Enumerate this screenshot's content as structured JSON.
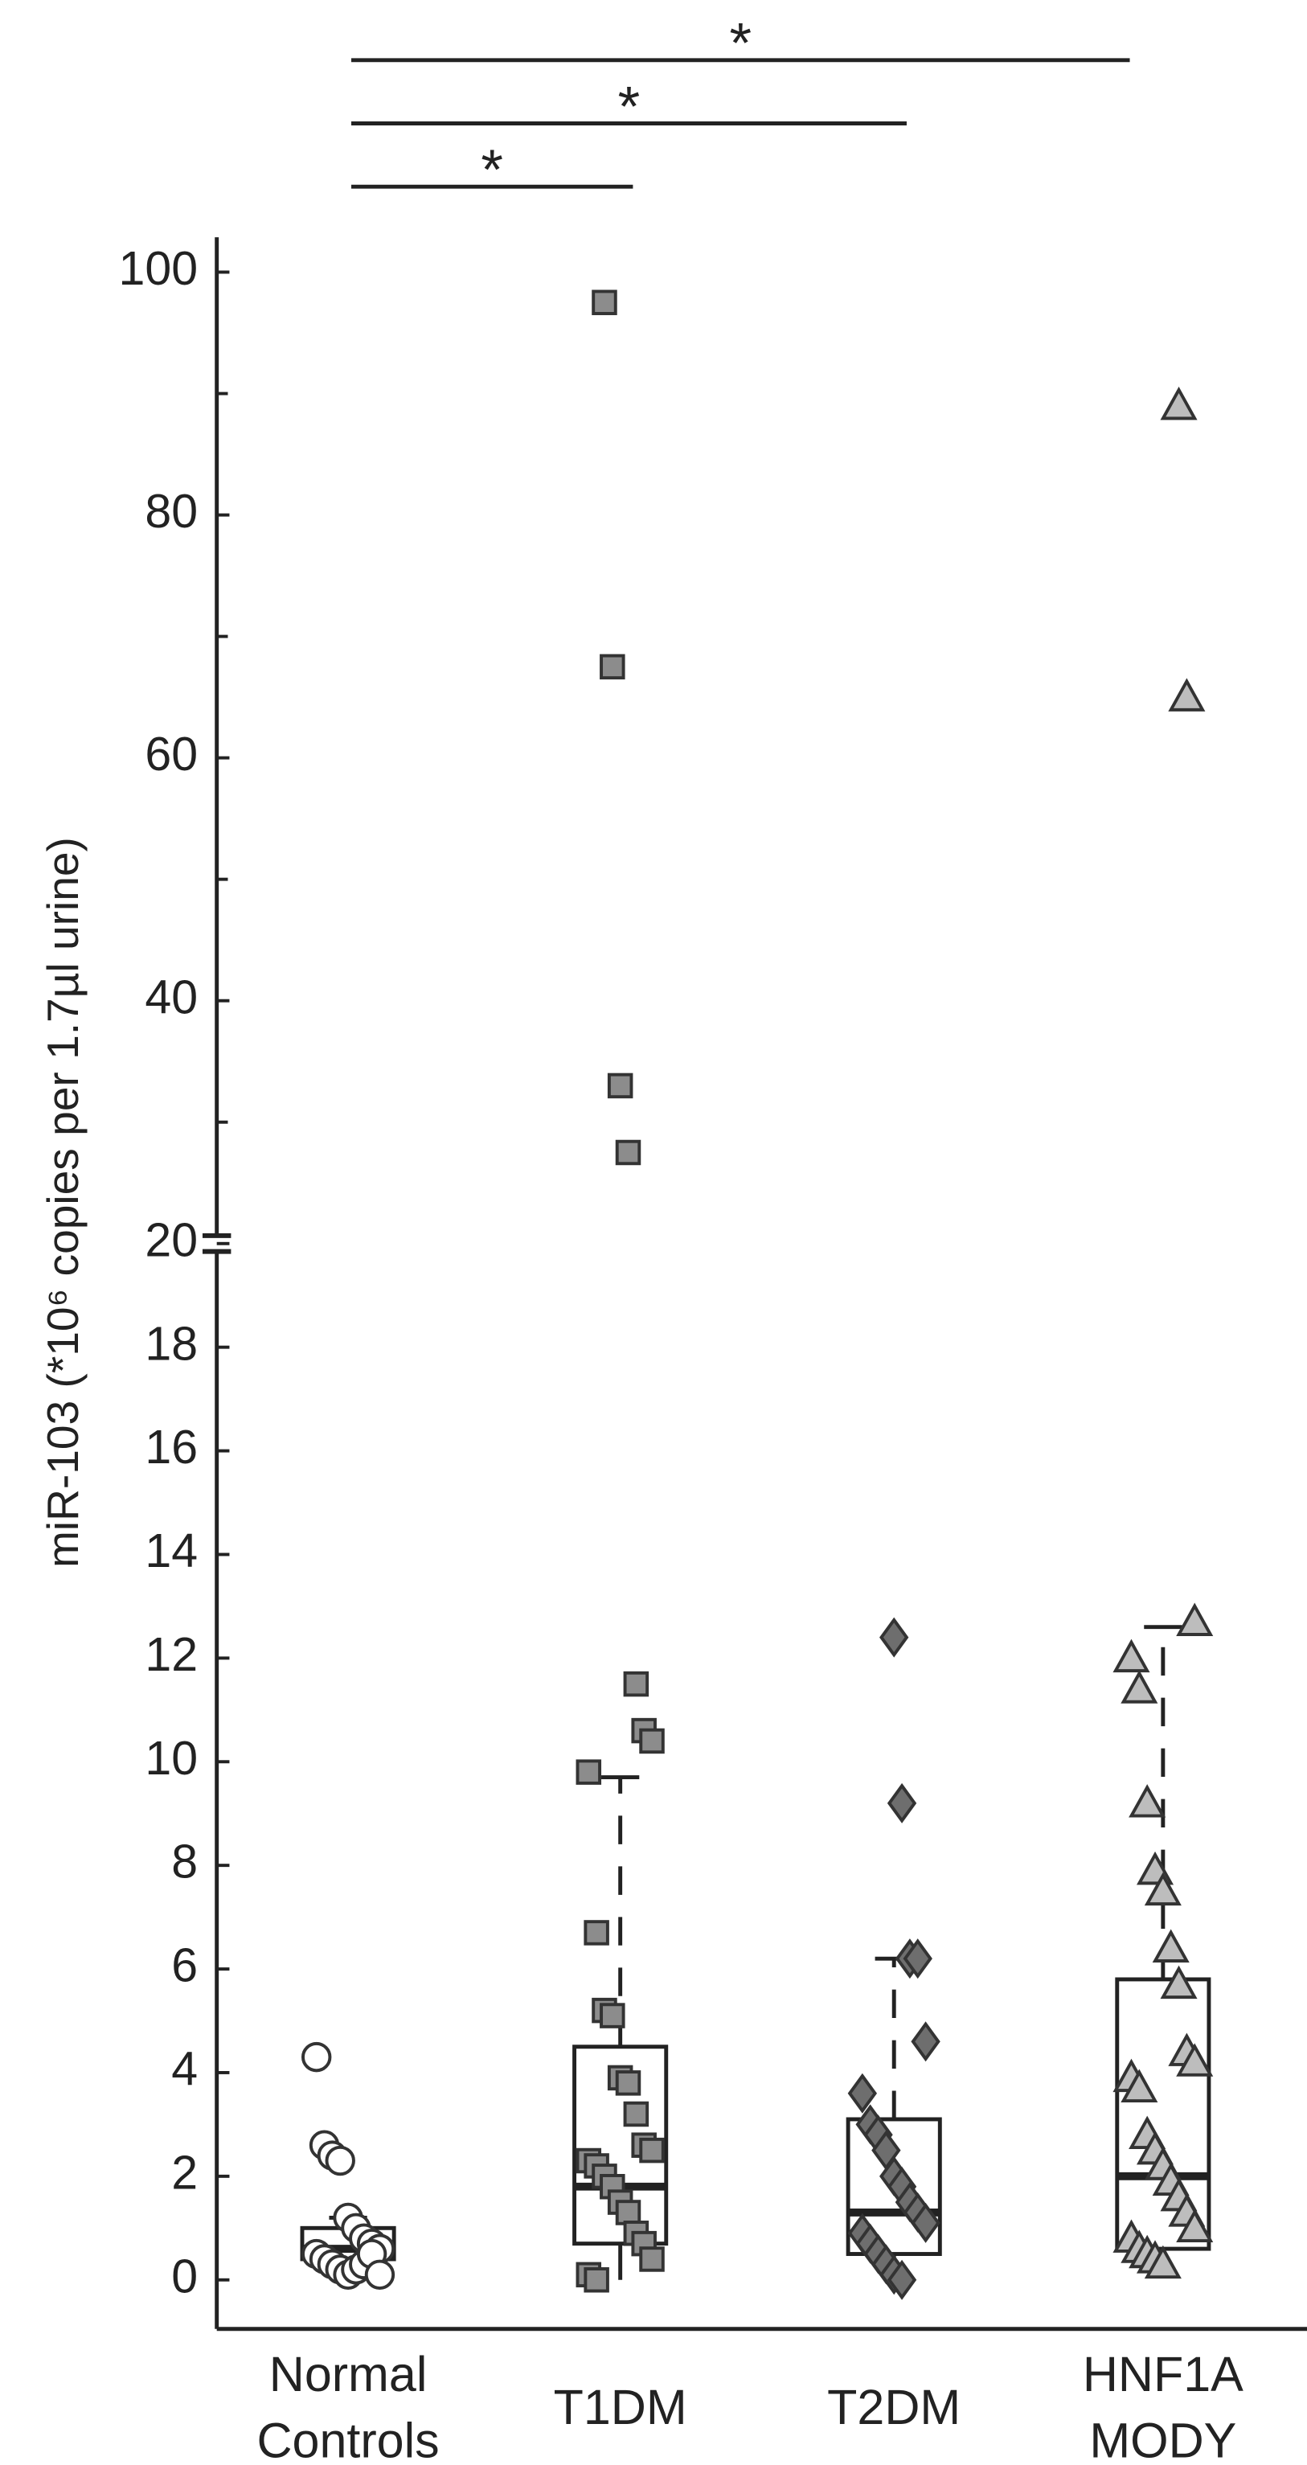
{
  "chart_data": {
    "type": "box",
    "y_label": "miR-103 (*10⁶ copies per 1.7µl urine)",
    "categories": [
      [
        "Normal",
        "Controls"
      ],
      [
        "T1DM"
      ],
      [
        "T2DM"
      ],
      [
        "HNF1A",
        "MODY"
      ]
    ],
    "ylim_lower": [
      0,
      20
    ],
    "ylim_upper": [
      20,
      100
    ],
    "yticks": [
      0,
      2,
      4,
      6,
      8,
      10,
      12,
      14,
      16,
      18,
      20,
      40,
      60,
      80,
      100
    ],
    "yminor_ticks": [
      30,
      50,
      70,
      90
    ],
    "boxes": [
      {
        "low": 0.1,
        "q1": 0.4,
        "median": 0.6,
        "q3": 1.0,
        "high": 1.2
      },
      {
        "low": 0,
        "q1": 0.7,
        "median": 1.8,
        "q3": 4.5,
        "high": 9.7
      },
      {
        "low": 0,
        "q1": 0.5,
        "median": 1.3,
        "q3": 3.1,
        "high": 6.2
      },
      {
        "low": 0.3,
        "q1": 0.6,
        "median": 2.0,
        "q3": 5.8,
        "high": 12.6
      }
    ],
    "series": [
      {
        "marker": "circle",
        "color": "#ffffff",
        "values": [
          4.3,
          2.6,
          2.4,
          2.3,
          1.2,
          1.0,
          0.8,
          0.7,
          0.6,
          0.5,
          0.4,
          0.3,
          0.2,
          0.1,
          0.2,
          0.3,
          0.5,
          0.1
        ]
      },
      {
        "marker": "square",
        "color": "#8c8c8c",
        "values": [
          97.5,
          67.5,
          33,
          27.5,
          11.5,
          10.6,
          10.4,
          9.8,
          6.7,
          5.2,
          5.1,
          3.9,
          3.8,
          3.2,
          2.6,
          2.5,
          2.3,
          2.2,
          2.0,
          1.8,
          1.5,
          1.3,
          0.9,
          0.7,
          0.4,
          0.1,
          0
        ]
      },
      {
        "marker": "diamond",
        "color": "#6e6e6e",
        "values": [
          12.4,
          9.2,
          6.2,
          6.2,
          4.6,
          3.6,
          3.0,
          2.8,
          2.5,
          2.0,
          1.8,
          1.5,
          1.3,
          1.1,
          0.9,
          0.7,
          0.5,
          0.3,
          0.1,
          0
        ]
      },
      {
        "marker": "triangle",
        "color": "#bdbdbd",
        "values": [
          89,
          65,
          12.7,
          12.0,
          11.4,
          9.2,
          7.9,
          7.5,
          6.4,
          5.7,
          4.4,
          4.2,
          3.9,
          3.7,
          2.8,
          2.5,
          2.2,
          1.9,
          1.6,
          1.3,
          1.0,
          0.8,
          0.6,
          0.5,
          0.4,
          0.3
        ]
      }
    ],
    "significance": [
      {
        "from": 0,
        "to": 3,
        "label": "*"
      },
      {
        "from": 0,
        "to": 2,
        "label": "*"
      },
      {
        "from": 0,
        "to": 1,
        "label": "*"
      }
    ]
  }
}
